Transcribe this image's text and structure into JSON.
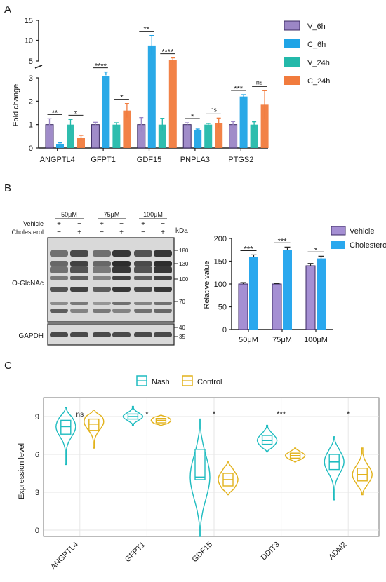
{
  "panel_labels": {
    "a": "A",
    "b": "B",
    "c": "C"
  },
  "colors": {
    "V_6h": "#9b86c6",
    "C_6h": "#1fa4e6",
    "V_24h": "#23b9aa",
    "C_24h": "#f17b3d",
    "vehicle": "#a58fd3",
    "cholesterol": "#2aa8ee",
    "nash": "#1fbcc0",
    "control": "#e2b21b",
    "bar_stroke": "#3b2a63",
    "blot_bg": "#d9d9d9",
    "blot_band": "#1a1a1a"
  },
  "chart_data": [
    {
      "id": "A",
      "type": "bar",
      "ylabel": "Fold change",
      "y_break": true,
      "y_ticks_lower": [
        0,
        1,
        2,
        3
      ],
      "y_ticks_upper": [
        5,
        10,
        15
      ],
      "categories": [
        "ANGPTL4",
        "GFPT1",
        "GDF15",
        "PNPLA3",
        "PTGS2"
      ],
      "series": [
        {
          "name": "V_6h",
          "values": [
            1.0,
            1.0,
            1.0,
            1.0,
            1.0
          ],
          "errors": [
            0.25,
            0.1,
            0.3,
            0.08,
            0.13
          ]
        },
        {
          "name": "C_6h",
          "values": [
            0.18,
            3.5,
            8.7,
            0.78,
            2.2
          ],
          "errors": [
            0.04,
            0.2,
            2.5,
            0.03,
            0.08
          ]
        },
        {
          "name": "V_24h",
          "values": [
            1.0,
            1.0,
            1.0,
            1.0,
            1.0
          ],
          "errors": [
            0.22,
            0.08,
            0.27,
            0.05,
            0.12
          ]
        },
        {
          "name": "C_24h",
          "values": [
            0.42,
            1.6,
            5.1,
            1.08,
            1.85
          ],
          "errors": [
            0.12,
            0.3,
            0.5,
            0.2,
            0.6
          ]
        }
      ],
      "significance": [
        [
          "**",
          "*"
        ],
        [
          "****",
          "*"
        ],
        [
          "**",
          "****"
        ],
        [
          "*",
          "ns"
        ],
        [
          "***",
          "ns"
        ]
      ]
    },
    {
      "id": "B",
      "type": "bar",
      "ylabel": "Relative value",
      "ylim": [
        0,
        200
      ],
      "y_ticks": [
        0,
        50,
        100,
        150,
        200
      ],
      "categories": [
        "50μM",
        "75μM",
        "100μM"
      ],
      "series": [
        {
          "name": "Vehicle",
          "values": [
            100,
            100,
            140
          ],
          "errors": [
            3,
            1,
            5
          ]
        },
        {
          "name": "Cholesterol",
          "values": [
            160,
            174,
            156
          ],
          "errors": [
            4,
            7,
            5
          ]
        }
      ],
      "significance": [
        "***",
        "***",
        "*"
      ]
    },
    {
      "id": "C",
      "type": "violin",
      "ylabel": "Expression level",
      "ylim": [
        -0.5,
        10.5
      ],
      "y_ticks": [
        0,
        3,
        6,
        9
      ],
      "categories": [
        "ANGPTL4",
        "GFPT1",
        "GDF15",
        "DDIT3",
        "ADM2"
      ],
      "series": [
        {
          "name": "Nash",
          "min": [
            5.2,
            8.3,
            -0.5,
            6.2,
            2.4
          ],
          "q1": [
            7.6,
            8.8,
            4.0,
            6.8,
            4.8
          ],
          "median": [
            8.2,
            9.0,
            4.2,
            7.1,
            5.4
          ],
          "q3": [
            8.7,
            9.2,
            6.4,
            7.5,
            6.0
          ],
          "max": [
            9.7,
            9.8,
            8.8,
            8.3,
            7.4
          ],
          "mode": [
            8.2,
            9.0,
            4.2,
            7.1,
            5.4
          ]
        },
        {
          "name": "Control",
          "min": [
            6.5,
            8.3,
            2.8,
            5.4,
            2.8
          ],
          "q1": [
            7.9,
            8.5,
            3.5,
            5.7,
            3.9
          ],
          "median": [
            8.4,
            8.7,
            4.0,
            5.9,
            4.4
          ],
          "q3": [
            8.8,
            8.85,
            4.5,
            6.1,
            4.9
          ],
          "max": [
            9.5,
            9.1,
            5.4,
            6.5,
            6.5
          ],
          "mode": [
            8.6,
            8.7,
            4.0,
            5.9,
            4.4
          ]
        }
      ],
      "significance": [
        "ns",
        "*",
        "*",
        "***",
        "*"
      ]
    }
  ],
  "legend_a": [
    "V_6h",
    "C_6h",
    "V_24h",
    "C_24h"
  ],
  "legend_b": [
    "Vehicle",
    "Cholesterol"
  ],
  "legend_c": [
    "Nash",
    "Control"
  ],
  "blot": {
    "row_labels": [
      "Vehicle",
      "Cholesterol"
    ],
    "conc_labels": [
      "50μM",
      "75μM",
      "100μM"
    ],
    "vehicle_signs": [
      "+",
      "−",
      "+",
      "−",
      "+",
      "−"
    ],
    "cholesterol_signs": [
      "−",
      "+",
      "−",
      "+",
      "−",
      "+"
    ],
    "kda_label": "kDa",
    "markers_main": [
      "180",
      "130",
      "100",
      "70"
    ],
    "markers_gapdh": [
      "40",
      "35"
    ],
    "blot_labels": [
      "O-GlcNAc",
      "GAPDH"
    ]
  }
}
